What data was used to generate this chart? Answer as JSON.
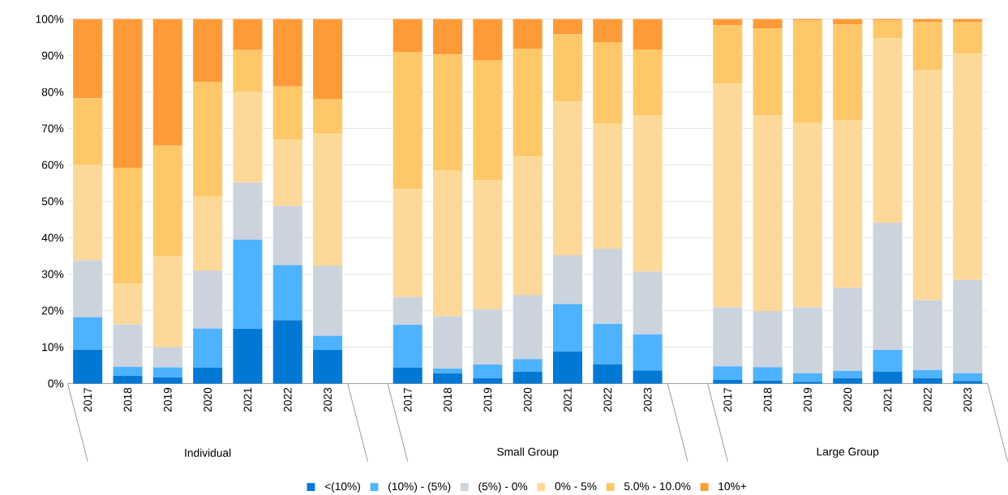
{
  "chart_data": {
    "type": "bar",
    "stacked": true,
    "categories": [
      "2017",
      "2018",
      "2019",
      "2020",
      "2021",
      "2022",
      "2023",
      null,
      "2017",
      "2018",
      "2019",
      "2020",
      "2021",
      "2022",
      "2023",
      null,
      "2017",
      "2018",
      "2019",
      "2020",
      "2021",
      "2022",
      "2023"
    ],
    "series": [
      {
        "name": "<(10%)",
        "color": "#0078d4",
        "values": [
          9.3,
          2.1,
          1.7,
          4.4,
          15.0,
          17.4,
          9.2,
          null,
          4.4,
          2.8,
          1.5,
          3.2,
          8.8,
          5.3,
          3.6,
          null,
          1.0,
          0.8,
          0.5,
          1.5,
          3.3,
          1.5,
          0.7
        ]
      },
      {
        "name": "(10%) - (5%)",
        "color": "#4db2ff",
        "values": [
          8.9,
          2.5,
          2.7,
          10.7,
          24.5,
          15.1,
          3.9,
          null,
          11.7,
          1.3,
          3.7,
          3.5,
          13.0,
          11.1,
          9.9,
          null,
          3.7,
          3.7,
          2.3,
          2.0,
          5.9,
          2.2,
          2.1
        ]
      },
      {
        "name": "(5%) - 0%",
        "color": "#cbd3de",
        "values": [
          15.6,
          11.6,
          5.5,
          15.9,
          15.6,
          16.2,
          19.2,
          null,
          7.6,
          14.4,
          15.2,
          17.6,
          13.4,
          20.6,
          17.2,
          null,
          16.2,
          15.4,
          18.1,
          22.8,
          34.9,
          19.2,
          25.6
        ]
      },
      {
        "name": "0% - 5%",
        "color": "#fdd898",
        "values": [
          26.2,
          11.2,
          25.0,
          20.3,
          24.9,
          18.3,
          36.2,
          null,
          29.7,
          39.9,
          35.4,
          38.0,
          42.2,
          34.3,
          43.0,
          null,
          61.4,
          53.8,
          50.6,
          46.0,
          50.6,
          63.2,
          62.1
        ]
      },
      {
        "name": "5.0% - 10.0%",
        "color": "#fec768",
        "values": [
          18.3,
          31.8,
          30.4,
          31.4,
          11.5,
          14.5,
          9.6,
          null,
          37.6,
          31.9,
          32.8,
          29.6,
          18.4,
          22.4,
          18.0,
          null,
          16.0,
          23.7,
          28.1,
          26.2,
          4.9,
          13.0,
          8.6
        ]
      },
      {
        "name": "10%+",
        "color": "#fe9b38",
        "values": [
          21.7,
          40.8,
          34.7,
          17.3,
          8.5,
          18.5,
          21.9,
          null,
          9.0,
          9.7,
          11.4,
          8.1,
          4.2,
          6.3,
          8.3,
          null,
          1.7,
          2.6,
          0.4,
          1.5,
          0.4,
          0.9,
          0.9
        ]
      }
    ],
    "ylim": [
      0,
      100
    ],
    "yticks": [
      {
        "value": 0,
        "label": "0%"
      },
      {
        "value": 10,
        "label": "10%"
      },
      {
        "value": 20,
        "label": "20%"
      },
      {
        "value": 30,
        "label": "30%"
      },
      {
        "value": 40,
        "label": "40%"
      },
      {
        "value": 50,
        "label": "50%"
      },
      {
        "value": 60,
        "label": "60%"
      },
      {
        "value": 70,
        "label": "70%"
      },
      {
        "value": 80,
        "label": "80%"
      },
      {
        "value": 90,
        "label": "90%"
      },
      {
        "value": 100,
        "label": "100%"
      }
    ],
    "grid": "y",
    "legend": "bottom",
    "annotations": [
      "Individual",
      "Small Group",
      "Large Group"
    ]
  }
}
